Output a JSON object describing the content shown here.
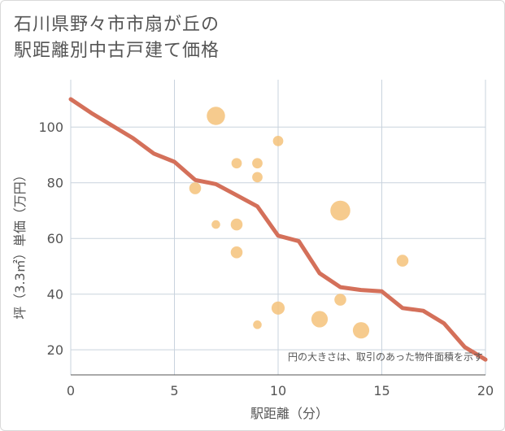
{
  "chart_data": {
    "type": "scatter",
    "title_line1": "石川県野々市市扇が丘の",
    "title_line2": "駅距離別中古戸建て価格",
    "xlabel": "駅距離（分）",
    "ylabel": "坪（3.3㎡）単価（万円）",
    "xlim": [
      0,
      20
    ],
    "ylim": [
      11,
      117
    ],
    "x_ticks": [
      0,
      5,
      10,
      15,
      20
    ],
    "x_tick_labels": [
      "0",
      "5",
      "10",
      "15",
      "20"
    ],
    "y_ticks": [
      20,
      40,
      60,
      80,
      100
    ],
    "y_tick_labels": [
      "20",
      "40",
      "60",
      "80",
      "100"
    ],
    "grid": true,
    "note": "円の大きさは、取引のあった物件面積を示す",
    "colors": {
      "bubble": "#f5c27a",
      "line": "#d4705a",
      "grid": "#c9d3de",
      "axis": "#555555"
    },
    "bubbles": [
      {
        "x": 6,
        "y": 78,
        "size": 2
      },
      {
        "x": 7,
        "y": 104,
        "size": 5
      },
      {
        "x": 7,
        "y": 65,
        "size": 1
      },
      {
        "x": 8,
        "y": 87,
        "size": 1.5
      },
      {
        "x": 8,
        "y": 65,
        "size": 2
      },
      {
        "x": 8,
        "y": 55,
        "size": 2
      },
      {
        "x": 9,
        "y": 87,
        "size": 1.5
      },
      {
        "x": 9,
        "y": 82,
        "size": 1.5
      },
      {
        "x": 9,
        "y": 29,
        "size": 1
      },
      {
        "x": 10,
        "y": 95,
        "size": 1.5
      },
      {
        "x": 10,
        "y": 35,
        "size": 2.5
      },
      {
        "x": 12,
        "y": 31,
        "size": 4
      },
      {
        "x": 13,
        "y": 70,
        "size": 6
      },
      {
        "x": 13,
        "y": 38,
        "size": 2
      },
      {
        "x": 14,
        "y": 27,
        "size": 4
      },
      {
        "x": 16,
        "y": 52,
        "size": 2
      }
    ],
    "trend_line": {
      "x": [
        0,
        1,
        2,
        3,
        4,
        5,
        6,
        7,
        8,
        9,
        10,
        11,
        12,
        13,
        14,
        15,
        16,
        17,
        18,
        19,
        20
      ],
      "y": [
        110,
        105,
        100.5,
        96,
        90.5,
        87.5,
        81,
        79.5,
        75.5,
        71.5,
        61,
        59,
        47.5,
        42.5,
        41.5,
        41,
        35,
        34,
        29.5,
        21,
        16.5
      ]
    }
  }
}
